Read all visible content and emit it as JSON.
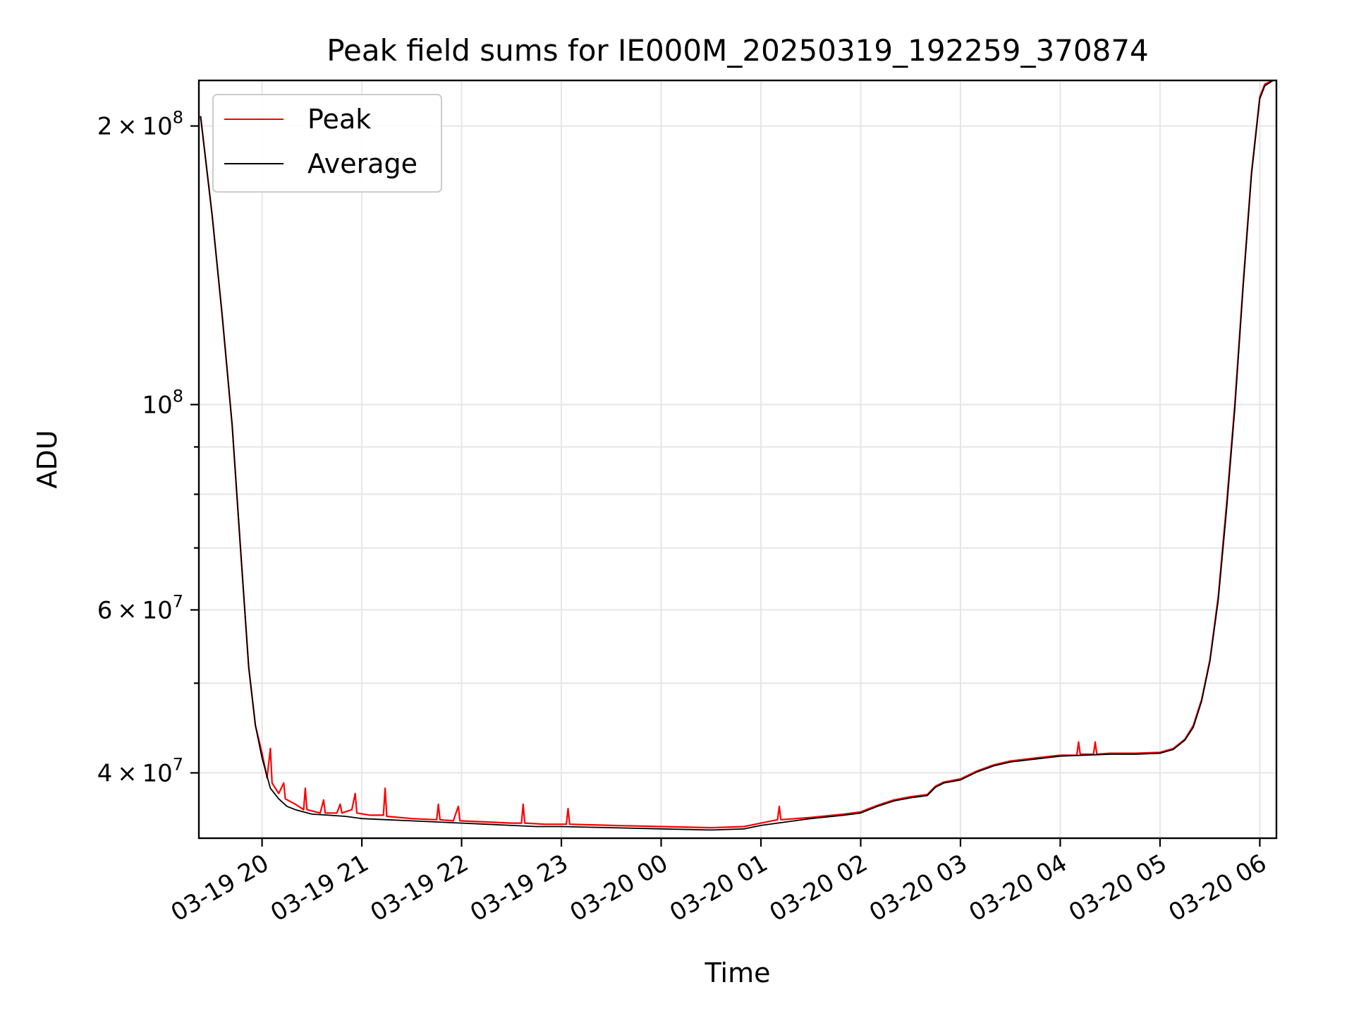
{
  "chart_data": {
    "type": "line",
    "title": "Peak field sums for IE000M_20250319_192259_370874",
    "xlabel": "Time",
    "ylabel": "ADU",
    "y_scale": "log",
    "xlim": [
      "2025-03-19 19:22",
      "2025-03-20 06:10"
    ],
    "ylim": [
      34000000,
      224000000
    ],
    "x_ticks": [
      {
        "t": "2025-03-19 20:00",
        "label": "03-19 20"
      },
      {
        "t": "2025-03-19 21:00",
        "label": "03-19 21"
      },
      {
        "t": "2025-03-19 22:00",
        "label": "03-19 22"
      },
      {
        "t": "2025-03-19 23:00",
        "label": "03-19 23"
      },
      {
        "t": "2025-03-20 00:00",
        "label": "03-20 00"
      },
      {
        "t": "2025-03-20 01:00",
        "label": "03-20 01"
      },
      {
        "t": "2025-03-20 02:00",
        "label": "03-20 02"
      },
      {
        "t": "2025-03-20 03:00",
        "label": "03-20 03"
      },
      {
        "t": "2025-03-20 04:00",
        "label": "03-20 04"
      },
      {
        "t": "2025-03-20 05:00",
        "label": "03-20 05"
      },
      {
        "t": "2025-03-20 06:00",
        "label": "03-20 06"
      }
    ],
    "y_major_ticks": [
      {
        "value": 40000000,
        "mant": "4",
        "exp": "7"
      },
      {
        "value": 60000000,
        "mant": "6",
        "exp": "7"
      },
      {
        "value": 100000000,
        "mant": "",
        "exp": "8"
      },
      {
        "value": 200000000,
        "mant": "2",
        "exp": "8"
      }
    ],
    "y_minor_ticks": [
      50000000,
      70000000,
      80000000,
      90000000
    ],
    "grid": true,
    "legend": {
      "placement": "top-left"
    },
    "series": [
      {
        "name": "Peak",
        "color": "#ff0000",
        "points": [
          [
            "2025-03-19 19:23",
            205000000
          ],
          [
            "2025-03-19 19:30",
            160000000
          ],
          [
            "2025-03-19 19:36",
            125000000
          ],
          [
            "2025-03-19 19:42",
            95000000
          ],
          [
            "2025-03-19 19:47",
            70000000
          ],
          [
            "2025-03-19 19:52",
            52000000
          ],
          [
            "2025-03-19 19:56",
            45000000
          ],
          [
            "2025-03-19 20:00",
            42000000
          ],
          [
            "2025-03-19 20:03",
            39500000
          ],
          [
            "2025-03-19 20:05",
            42500000
          ],
          [
            "2025-03-19 20:06",
            39000000
          ],
          [
            "2025-03-19 20:10",
            38000000
          ],
          [
            "2025-03-19 20:13",
            39000000
          ],
          [
            "2025-03-19 20:14",
            37500000
          ],
          [
            "2025-03-19 20:20",
            37000000
          ],
          [
            "2025-03-19 20:25",
            36500000
          ],
          [
            "2025-03-19 20:26",
            38500000
          ],
          [
            "2025-03-19 20:27",
            36500000
          ],
          [
            "2025-03-19 20:35",
            36200000
          ],
          [
            "2025-03-19 20:37",
            37400000
          ],
          [
            "2025-03-19 20:38",
            36200000
          ],
          [
            "2025-03-19 20:45",
            36200000
          ],
          [
            "2025-03-19 20:47",
            37000000
          ],
          [
            "2025-03-19 20:48",
            36200000
          ],
          [
            "2025-03-19 20:54",
            36500000
          ],
          [
            "2025-03-19 20:56",
            38000000
          ],
          [
            "2025-03-19 20:57",
            36200000
          ],
          [
            "2025-03-19 21:05",
            36000000
          ],
          [
            "2025-03-19 21:10",
            36000000
          ],
          [
            "2025-03-19 21:13",
            36000000
          ],
          [
            "2025-03-19 21:14",
            38500000
          ],
          [
            "2025-03-19 21:15",
            35900000
          ],
          [
            "2025-03-19 21:30",
            35700000
          ],
          [
            "2025-03-19 21:45",
            35600000
          ],
          [
            "2025-03-19 21:46",
            37000000
          ],
          [
            "2025-03-19 21:47",
            35600000
          ],
          [
            "2025-03-19 21:55",
            35500000
          ],
          [
            "2025-03-19 21:58",
            36800000
          ],
          [
            "2025-03-19 21:59",
            35500000
          ],
          [
            "2025-03-19 22:15",
            35400000
          ],
          [
            "2025-03-19 22:30",
            35300000
          ],
          [
            "2025-03-19 22:36",
            35300000
          ],
          [
            "2025-03-19 22:37",
            37000000
          ],
          [
            "2025-03-19 22:38",
            35300000
          ],
          [
            "2025-03-19 22:50",
            35200000
          ],
          [
            "2025-03-19 23:03",
            35200000
          ],
          [
            "2025-03-19 23:04",
            36600000
          ],
          [
            "2025-03-19 23:05",
            35200000
          ],
          [
            "2025-03-19 23:30",
            35100000
          ],
          [
            "2025-03-20 00:00",
            35000000
          ],
          [
            "2025-03-20 00:30",
            34900000
          ],
          [
            "2025-03-20 00:50",
            35000000
          ],
          [
            "2025-03-20 01:00",
            35300000
          ],
          [
            "2025-03-20 01:10",
            35600000
          ],
          [
            "2025-03-20 01:11",
            36800000
          ],
          [
            "2025-03-20 01:12",
            35600000
          ],
          [
            "2025-03-20 01:30",
            35800000
          ],
          [
            "2025-03-20 01:50",
            36100000
          ],
          [
            "2025-03-20 02:00",
            36300000
          ],
          [
            "2025-03-20 02:10",
            36900000
          ],
          [
            "2025-03-20 02:20",
            37400000
          ],
          [
            "2025-03-20 02:30",
            37700000
          ],
          [
            "2025-03-20 02:40",
            37900000
          ],
          [
            "2025-03-20 02:45",
            38700000
          ],
          [
            "2025-03-20 02:50",
            39100000
          ],
          [
            "2025-03-20 03:00",
            39400000
          ],
          [
            "2025-03-20 03:10",
            40200000
          ],
          [
            "2025-03-20 03:20",
            40800000
          ],
          [
            "2025-03-20 03:30",
            41200000
          ],
          [
            "2025-03-20 03:45",
            41500000
          ],
          [
            "2025-03-20 04:00",
            41800000
          ],
          [
            "2025-03-20 04:10",
            41800000
          ],
          [
            "2025-03-20 04:11",
            43200000
          ],
          [
            "2025-03-20 04:12",
            41900000
          ],
          [
            "2025-03-20 04:20",
            41900000
          ],
          [
            "2025-03-20 04:21",
            43200000
          ],
          [
            "2025-03-20 04:22",
            41900000
          ],
          [
            "2025-03-20 04:30",
            42000000
          ],
          [
            "2025-03-20 04:45",
            42000000
          ],
          [
            "2025-03-20 05:00",
            42100000
          ],
          [
            "2025-03-20 05:08",
            42500000
          ],
          [
            "2025-03-20 05:15",
            43500000
          ],
          [
            "2025-03-20 05:20",
            45000000
          ],
          [
            "2025-03-20 05:25",
            48000000
          ],
          [
            "2025-03-20 05:30",
            53000000
          ],
          [
            "2025-03-20 05:35",
            62000000
          ],
          [
            "2025-03-20 05:40",
            78000000
          ],
          [
            "2025-03-20 05:45",
            100000000
          ],
          [
            "2025-03-20 05:50",
            135000000
          ],
          [
            "2025-03-20 05:55",
            178000000
          ],
          [
            "2025-03-20 06:00",
            215000000
          ],
          [
            "2025-03-20 06:03",
            222000000
          ],
          [
            "2025-03-20 06:08",
            224000000
          ]
        ]
      },
      {
        "name": "Average",
        "color": "#000000",
        "points": [
          [
            "2025-03-19 19:23",
            205000000
          ],
          [
            "2025-03-19 19:30",
            160000000
          ],
          [
            "2025-03-19 19:36",
            125000000
          ],
          [
            "2025-03-19 19:42",
            95000000
          ],
          [
            "2025-03-19 19:47",
            70000000
          ],
          [
            "2025-03-19 19:52",
            52000000
          ],
          [
            "2025-03-19 19:56",
            45000000
          ],
          [
            "2025-03-19 20:00",
            41500000
          ],
          [
            "2025-03-19 20:05",
            38500000
          ],
          [
            "2025-03-19 20:10",
            37500000
          ],
          [
            "2025-03-19 20:15",
            36800000
          ],
          [
            "2025-03-19 20:20",
            36500000
          ],
          [
            "2025-03-19 20:30",
            36100000
          ],
          [
            "2025-03-19 20:40",
            36000000
          ],
          [
            "2025-03-19 20:50",
            35900000
          ],
          [
            "2025-03-19 21:00",
            35700000
          ],
          [
            "2025-03-19 21:15",
            35600000
          ],
          [
            "2025-03-19 21:30",
            35500000
          ],
          [
            "2025-03-19 21:45",
            35400000
          ],
          [
            "2025-03-19 22:00",
            35300000
          ],
          [
            "2025-03-19 22:15",
            35200000
          ],
          [
            "2025-03-19 22:30",
            35100000
          ],
          [
            "2025-03-19 22:45",
            35000000
          ],
          [
            "2025-03-19 23:00",
            35000000
          ],
          [
            "2025-03-19 23:30",
            34900000
          ],
          [
            "2025-03-20 00:00",
            34800000
          ],
          [
            "2025-03-20 00:30",
            34700000
          ],
          [
            "2025-03-20 00:50",
            34800000
          ],
          [
            "2025-03-20 01:00",
            35100000
          ],
          [
            "2025-03-20 01:15",
            35400000
          ],
          [
            "2025-03-20 01:30",
            35700000
          ],
          [
            "2025-03-20 01:50",
            36000000
          ],
          [
            "2025-03-20 02:00",
            36200000
          ],
          [
            "2025-03-20 02:10",
            36800000
          ],
          [
            "2025-03-20 02:20",
            37300000
          ],
          [
            "2025-03-20 02:30",
            37600000
          ],
          [
            "2025-03-20 02:40",
            37800000
          ],
          [
            "2025-03-20 02:45",
            38600000
          ],
          [
            "2025-03-20 02:50",
            39000000
          ],
          [
            "2025-03-20 03:00",
            39300000
          ],
          [
            "2025-03-20 03:10",
            40100000
          ],
          [
            "2025-03-20 03:20",
            40700000
          ],
          [
            "2025-03-20 03:30",
            41100000
          ],
          [
            "2025-03-20 03:45",
            41400000
          ],
          [
            "2025-03-20 04:00",
            41700000
          ],
          [
            "2025-03-20 04:15",
            41800000
          ],
          [
            "2025-03-20 04:30",
            41900000
          ],
          [
            "2025-03-20 04:45",
            41900000
          ],
          [
            "2025-03-20 05:00",
            42000000
          ],
          [
            "2025-03-20 05:08",
            42400000
          ],
          [
            "2025-03-20 05:15",
            43400000
          ],
          [
            "2025-03-20 05:20",
            44800000
          ],
          [
            "2025-03-20 05:25",
            47800000
          ],
          [
            "2025-03-20 05:30",
            52800000
          ],
          [
            "2025-03-20 05:35",
            61500000
          ],
          [
            "2025-03-20 05:40",
            77000000
          ],
          [
            "2025-03-20 05:45",
            99000000
          ],
          [
            "2025-03-20 05:50",
            134000000
          ],
          [
            "2025-03-20 05:55",
            177000000
          ],
          [
            "2025-03-20 06:00",
            214000000
          ],
          [
            "2025-03-20 06:03",
            221000000
          ],
          [
            "2025-03-20 06:08",
            224000000
          ]
        ]
      }
    ]
  }
}
